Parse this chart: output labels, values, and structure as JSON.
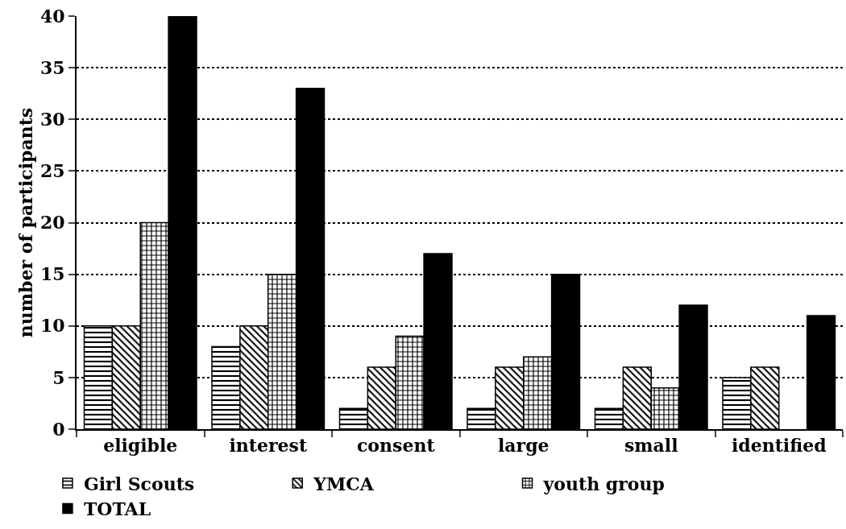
{
  "chart_data": {
    "type": "bar",
    "ylabel": "number of participants",
    "categories": [
      "eligible",
      "interest",
      "consent",
      "large",
      "small",
      "identified"
    ],
    "series": [
      {
        "name": "Girl Scouts",
        "color": "#000000",
        "values": [
          10,
          8,
          2,
          2,
          2,
          5
        ]
      },
      {
        "name": "YMCA",
        "color": "#000000",
        "values": [
          10,
          10,
          6,
          6,
          6,
          6
        ]
      },
      {
        "name": "youth group",
        "color": "#000000",
        "values": [
          20,
          15,
          9,
          7,
          4,
          null
        ]
      },
      {
        "name": "TOTAL",
        "color": "#000000",
        "values": [
          40,
          33,
          17,
          15,
          12,
          11
        ]
      }
    ],
    "ylim": [
      0,
      40
    ],
    "yticks": [
      0,
      5,
      10,
      15,
      20,
      25,
      30,
      35,
      40
    ],
    "grid": "y",
    "legend": "bottom"
  }
}
